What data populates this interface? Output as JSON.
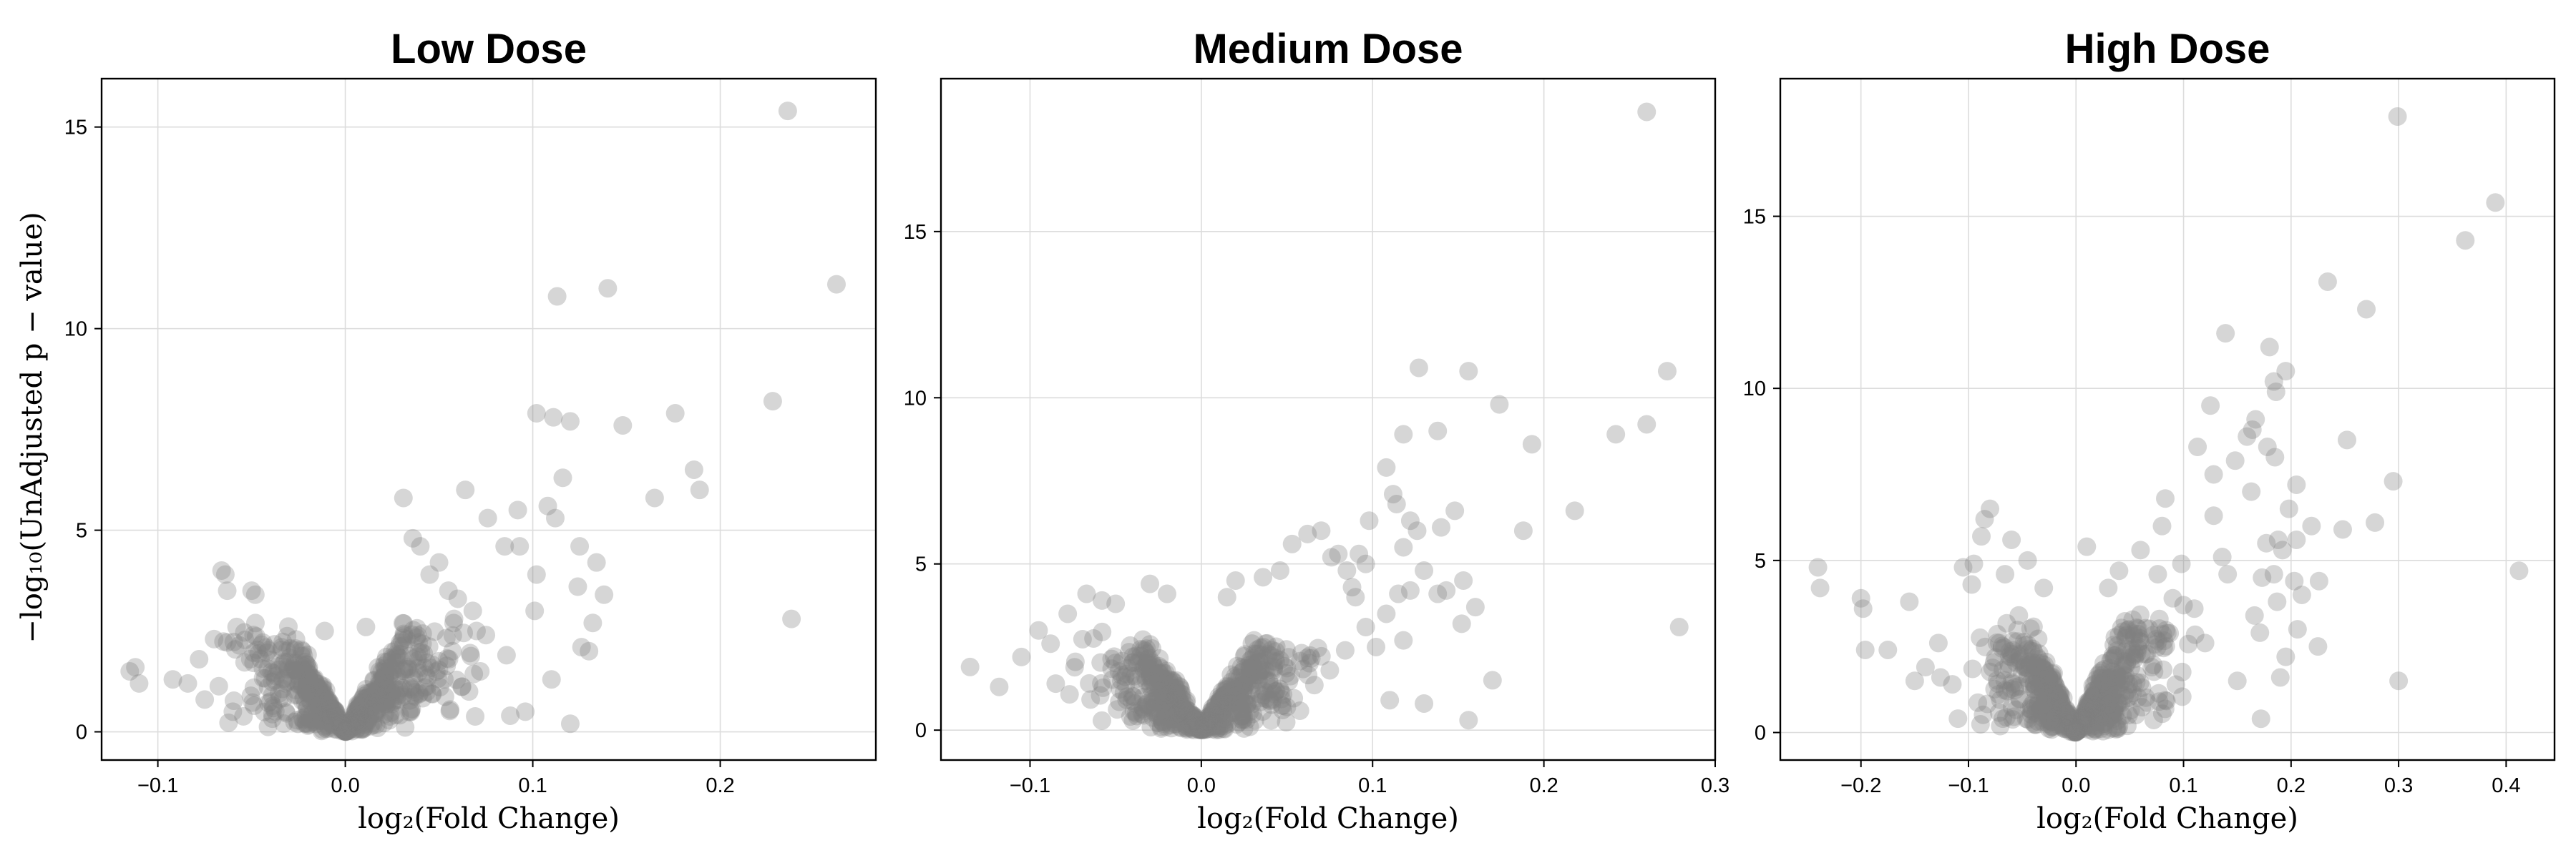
{
  "figure": {
    "ylabel": "−log₁₀(UnAdjusted p − value)",
    "point_color": "#808080"
  },
  "chart_data": [
    {
      "type": "scatter",
      "title": "Low Dose",
      "xlabel": "log₂(Fold Change)",
      "xlim": [
        -0.13,
        0.283
      ],
      "ylim": [
        -0.7,
        16.2
      ],
      "xticks": [
        -0.1,
        0.0,
        0.1,
        0.2
      ],
      "xtick_labels": [
        "−0.1",
        "0.0",
        "0.1",
        "0.2"
      ],
      "yticks": [
        0,
        5,
        10,
        15
      ],
      "ytick_labels": [
        "0",
        "5",
        "10",
        "15"
      ],
      "grid": true,
      "points": [
        [
          0.236,
          15.4
        ],
        [
          0.262,
          11.1
        ],
        [
          0.14,
          11.0
        ],
        [
          0.113,
          10.8
        ],
        [
          0.228,
          8.2
        ],
        [
          0.102,
          7.9
        ],
        [
          0.111,
          7.8
        ],
        [
          0.176,
          7.9
        ],
        [
          0.12,
          7.7
        ],
        [
          0.148,
          7.6
        ],
        [
          0.186,
          6.5
        ],
        [
          0.189,
          6.0
        ],
        [
          0.116,
          6.3
        ],
        [
          0.165,
          5.8
        ],
        [
          0.031,
          5.8
        ],
        [
          0.064,
          6.0
        ],
        [
          0.092,
          5.5
        ],
        [
          0.108,
          5.6
        ],
        [
          0.112,
          5.3
        ],
        [
          0.076,
          5.3
        ],
        [
          0.085,
          4.6
        ],
        [
          0.093,
          4.6
        ],
        [
          0.125,
          4.6
        ],
        [
          0.134,
          4.2
        ],
        [
          0.138,
          3.4
        ],
        [
          0.124,
          3.6
        ],
        [
          0.102,
          3.9
        ],
        [
          0.101,
          3.0
        ],
        [
          0.132,
          2.7
        ],
        [
          0.126,
          2.1
        ],
        [
          0.13,
          2.0
        ],
        [
          0.238,
          2.8
        ],
        [
          0.12,
          0.2
        ],
        [
          0.088,
          0.4
        ],
        [
          0.096,
          0.5
        ],
        [
          0.11,
          1.3
        ],
        [
          0.075,
          2.4
        ],
        [
          0.086,
          1.9
        ],
        [
          -0.066,
          4.0
        ],
        [
          -0.064,
          3.9
        ],
        [
          -0.05,
          3.5
        ],
        [
          -0.048,
          3.4
        ],
        [
          -0.115,
          1.5
        ],
        [
          -0.112,
          1.6
        ],
        [
          -0.11,
          1.2
        ],
        [
          -0.092,
          1.3
        ],
        [
          -0.084,
          1.2
        ],
        [
          -0.078,
          1.8
        ],
        [
          -0.075,
          0.8
        ],
        [
          -0.07,
          2.3
        ],
        [
          -0.063,
          3.5
        ],
        [
          -0.058,
          2.6
        ],
        [
          0.04,
          4.6
        ],
        [
          0.036,
          4.8
        ],
        [
          0.05,
          4.2
        ],
        [
          0.055,
          3.5
        ],
        [
          0.06,
          3.3
        ],
        [
          0.068,
          3.0
        ],
        [
          0.07,
          2.5
        ],
        [
          0.072,
          1.5
        ],
        [
          0.066,
          1.0
        ],
        [
          -0.06,
          0.5
        ],
        [
          0.011,
          2.6
        ],
        [
          -0.011,
          2.5
        ],
        [
          0.045,
          3.9
        ],
        [
          0.058,
          2.8
        ]
      ],
      "dense": {
        "x_half_width": 0.06,
        "peak_height": 2.8,
        "count": 620,
        "seed": 11
      }
    },
    {
      "type": "scatter",
      "title": "Medium Dose",
      "xlabel": "log₂(Fold Change)",
      "xlim": [
        -0.152,
        0.3
      ],
      "ylim": [
        -0.9,
        19.6
      ],
      "xticks": [
        -0.1,
        0.0,
        0.1,
        0.2,
        0.3
      ],
      "xtick_labels": [
        "−0.1",
        "0.0",
        "0.1",
        "0.2",
        "0.3"
      ],
      "yticks": [
        0,
        5,
        10,
        15
      ],
      "ytick_labels": [
        "0",
        "5",
        "10",
        "15"
      ],
      "grid": true,
      "points": [
        [
          0.26,
          18.6
        ],
        [
          0.127,
          10.9
        ],
        [
          0.156,
          10.8
        ],
        [
          0.272,
          10.8
        ],
        [
          0.174,
          9.8
        ],
        [
          0.26,
          9.2
        ],
        [
          0.138,
          9.0
        ],
        [
          0.118,
          8.9
        ],
        [
          0.242,
          8.9
        ],
        [
          0.193,
          8.6
        ],
        [
          0.108,
          7.9
        ],
        [
          0.112,
          7.1
        ],
        [
          0.114,
          6.8
        ],
        [
          0.148,
          6.6
        ],
        [
          0.218,
          6.6
        ],
        [
          0.098,
          6.3
        ],
        [
          0.122,
          6.3
        ],
        [
          0.126,
          6.0
        ],
        [
          0.188,
          6.0
        ],
        [
          0.14,
          6.1
        ],
        [
          0.118,
          5.5
        ],
        [
          0.092,
          5.3
        ],
        [
          0.096,
          5.0
        ],
        [
          0.13,
          4.8
        ],
        [
          0.153,
          4.5
        ],
        [
          0.138,
          4.1
        ],
        [
          0.143,
          4.2
        ],
        [
          0.115,
          4.1
        ],
        [
          0.122,
          4.2
        ],
        [
          0.108,
          3.5
        ],
        [
          0.16,
          3.7
        ],
        [
          0.279,
          3.1
        ],
        [
          0.152,
          3.2
        ],
        [
          0.17,
          1.5
        ],
        [
          0.156,
          0.3
        ],
        [
          0.102,
          2.5
        ],
        [
          0.118,
          2.7
        ],
        [
          0.11,
          0.9
        ],
        [
          0.13,
          0.8
        ],
        [
          0.07,
          6.0
        ],
        [
          0.062,
          5.9
        ],
        [
          0.053,
          5.6
        ],
        [
          0.076,
          5.2
        ],
        [
          0.08,
          5.3
        ],
        [
          0.085,
          4.8
        ],
        [
          0.088,
          4.3
        ],
        [
          0.09,
          4.0
        ],
        [
          -0.135,
          1.9
        ],
        [
          -0.118,
          1.3
        ],
        [
          -0.105,
          2.2
        ],
        [
          -0.095,
          3.0
        ],
        [
          -0.088,
          2.6
        ],
        [
          -0.078,
          3.5
        ],
        [
          -0.067,
          4.1
        ],
        [
          -0.058,
          3.9
        ],
        [
          -0.05,
          3.8
        ],
        [
          -0.085,
          1.4
        ],
        [
          0.046,
          4.8
        ],
        [
          0.036,
          4.6
        ],
        [
          0.02,
          4.5
        ],
        [
          0.015,
          4.0
        ],
        [
          -0.03,
          4.4
        ],
        [
          -0.02,
          4.1
        ],
        [
          0.096,
          3.1
        ],
        [
          0.084,
          2.4
        ],
        [
          0.075,
          1.8
        ]
      ],
      "dense": {
        "x_half_width": 0.062,
        "peak_height": 3.0,
        "count": 620,
        "seed": 23
      }
    },
    {
      "type": "scatter",
      "title": "High Dose",
      "xlabel": "log₂(Fold Change)",
      "xlim": [
        -0.275,
        0.445
      ],
      "ylim": [
        -0.8,
        19.0
      ],
      "xticks": [
        -0.2,
        -0.1,
        0.0,
        0.1,
        0.2,
        0.3,
        0.4
      ],
      "xtick_labels": [
        "−0.2",
        "−0.1",
        "0.0",
        "0.1",
        "0.2",
        "0.3",
        "0.4"
      ],
      "yticks": [
        0,
        5,
        10,
        15
      ],
      "ytick_labels": [
        "0",
        "5",
        "10",
        "15"
      ],
      "grid": true,
      "points": [
        [
          0.299,
          17.9
        ],
        [
          0.39,
          15.4
        ],
        [
          0.362,
          14.3
        ],
        [
          0.234,
          13.1
        ],
        [
          0.27,
          12.3
        ],
        [
          0.139,
          11.6
        ],
        [
          0.18,
          11.2
        ],
        [
          0.195,
          10.5
        ],
        [
          0.184,
          10.2
        ],
        [
          0.186,
          9.9
        ],
        [
          0.125,
          9.5
        ],
        [
          0.167,
          9.1
        ],
        [
          0.164,
          8.8
        ],
        [
          0.159,
          8.6
        ],
        [
          0.252,
          8.5
        ],
        [
          0.113,
          8.3
        ],
        [
          0.178,
          8.3
        ],
        [
          0.185,
          8.0
        ],
        [
          0.148,
          7.9
        ],
        [
          0.128,
          7.5
        ],
        [
          0.295,
          7.3
        ],
        [
          0.205,
          7.2
        ],
        [
          0.163,
          7.0
        ],
        [
          0.083,
          6.8
        ],
        [
          0.198,
          6.5
        ],
        [
          0.219,
          6.0
        ],
        [
          0.248,
          5.9
        ],
        [
          0.278,
          6.1
        ],
        [
          0.412,
          4.7
        ],
        [
          0.188,
          5.6
        ],
        [
          0.205,
          5.6
        ],
        [
          0.177,
          5.5
        ],
        [
          0.192,
          5.3
        ],
        [
          0.136,
          5.1
        ],
        [
          0.128,
          6.3
        ],
        [
          0.141,
          4.6
        ],
        [
          0.173,
          4.5
        ],
        [
          0.184,
          4.6
        ],
        [
          0.203,
          4.4
        ],
        [
          0.226,
          4.4
        ],
        [
          0.21,
          4.0
        ],
        [
          0.187,
          3.8
        ],
        [
          0.166,
          3.4
        ],
        [
          0.171,
          2.9
        ],
        [
          0.206,
          3.0
        ],
        [
          0.225,
          2.5
        ],
        [
          0.195,
          2.2
        ],
        [
          0.15,
          1.5
        ],
        [
          0.3,
          1.5
        ],
        [
          0.19,
          1.6
        ],
        [
          0.172,
          0.4
        ],
        [
          0.12,
          2.6
        ],
        [
          -0.24,
          4.8
        ],
        [
          -0.238,
          4.2
        ],
        [
          -0.2,
          3.9
        ],
        [
          -0.198,
          3.6
        ],
        [
          -0.196,
          2.4
        ],
        [
          -0.175,
          2.4
        ],
        [
          -0.155,
          3.8
        ],
        [
          -0.128,
          2.6
        ],
        [
          -0.126,
          1.6
        ],
        [
          -0.085,
          6.2
        ],
        [
          -0.08,
          6.5
        ],
        [
          -0.088,
          5.7
        ],
        [
          -0.095,
          4.9
        ],
        [
          -0.105,
          4.8
        ],
        [
          -0.097,
          4.3
        ],
        [
          -0.06,
          5.6
        ],
        [
          -0.045,
          5.0
        ],
        [
          0.01,
          5.4
        ],
        [
          0.06,
          5.3
        ],
        [
          0.08,
          6.0
        ],
        [
          0.076,
          4.6
        ],
        [
          0.098,
          4.9
        ],
        [
          0.1,
          3.7
        ],
        [
          0.09,
          3.9
        ],
        [
          0.11,
          3.6
        ],
        [
          -0.115,
          1.4
        ],
        [
          -0.15,
          1.5
        ],
        [
          -0.14,
          1.9
        ],
        [
          -0.066,
          4.6
        ],
        [
          0.04,
          4.7
        ],
        [
          0.03,
          4.2
        ],
        [
          -0.03,
          4.2
        ]
      ],
      "dense": {
        "x_half_width": 0.09,
        "peak_height": 3.6,
        "count": 640,
        "seed": 37
      }
    }
  ]
}
